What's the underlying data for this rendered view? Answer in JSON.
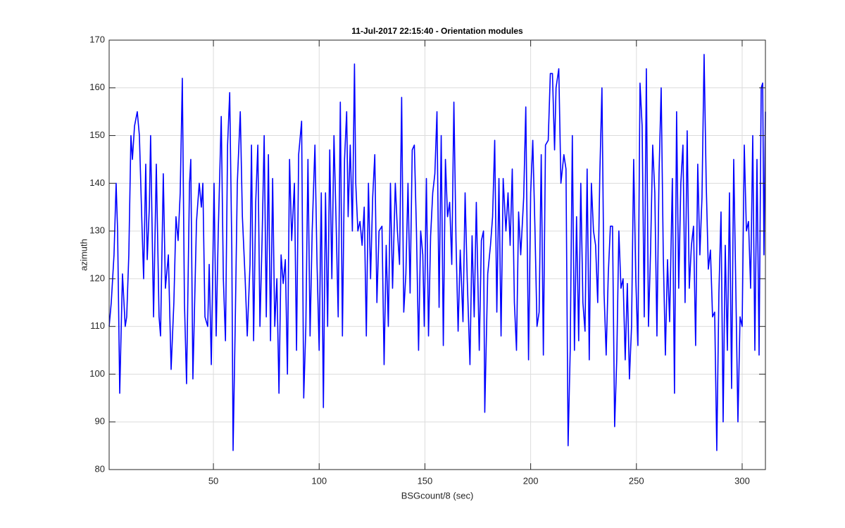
{
  "chart_data": {
    "type": "line",
    "title": "11-Jul-2017 22:15:40 - Orientation modules",
    "x_label": "BSGcount/8 (sec)",
    "y_label": "azimuth",
    "xlim": [
      0.7,
      311
    ],
    "ylim": [
      80,
      170
    ],
    "xticks": [
      50,
      100,
      150,
      200,
      250,
      300
    ],
    "yticks": [
      80,
      90,
      100,
      110,
      120,
      130,
      140,
      150,
      160,
      170
    ],
    "grid": true,
    "x": [
      0.7,
      1.7,
      3,
      4,
      4.7,
      5.7,
      7,
      8.3,
      9,
      10,
      11,
      11.7,
      12.7,
      14,
      15,
      16.3,
      17,
      18,
      18.7,
      19.7,
      20.3,
      21.7,
      23,
      24.3,
      25,
      26.3,
      27.3,
      28.7,
      30,
      31.3,
      32.3,
      33.3,
      34.3,
      35.3,
      36.3,
      37.3,
      38.7,
      39.3,
      40.3,
      42,
      43.3,
      44.3,
      45,
      46,
      47.3,
      48,
      49,
      50.3,
      51.3,
      52.3,
      53.7,
      54.7,
      55.7,
      56.7,
      57.7,
      58.7,
      59.3,
      60.3,
      61.3,
      62.7,
      63.7,
      65,
      66,
      67.3,
      68,
      69,
      70,
      71,
      72,
      73,
      74,
      75,
      76,
      77,
      78,
      79,
      80,
      81,
      82,
      83,
      84,
      85,
      86,
      87,
      88.3,
      89.3,
      90.3,
      91.7,
      92.7,
      93.7,
      94.7,
      95.7,
      96.7,
      98,
      99,
      100,
      101,
      102,
      103,
      104,
      105,
      106,
      107,
      108,
      109,
      110,
      111,
      112,
      113,
      113.7,
      114.7,
      115.7,
      116.7,
      117.3,
      118.3,
      119.3,
      120.3,
      121.3,
      122.3,
      123.3,
      124.3,
      125.3,
      126.3,
      127.3,
      128.3,
      129.7,
      130.7,
      131.7,
      132.7,
      133.7,
      134.7,
      136,
      137,
      138,
      139,
      140,
      141,
      142,
      143,
      144,
      145,
      146,
      147,
      148,
      149,
      149.7,
      150.7,
      151.7,
      152.7,
      153.7,
      154.7,
      155.7,
      156.7,
      157.7,
      158.7,
      159.7,
      160.7,
      161.7,
      162.7,
      163.7,
      164.7,
      165.7,
      166.7,
      168,
      169,
      170,
      171.3,
      172.3,
      173.3,
      174.3,
      175.7,
      176.7,
      177.7,
      178.3,
      179.7,
      181,
      182,
      183,
      184,
      185,
      186,
      187,
      188.3,
      189.3,
      190.3,
      191.3,
      192.3,
      193.3,
      194.3,
      195.3,
      196.7,
      197.7,
      198.3,
      199,
      200,
      201,
      202,
      203,
      204,
      205,
      206,
      207,
      208.3,
      209.3,
      210.3,
      211.3,
      212,
      213.3,
      214.3,
      215.7,
      216.7,
      217.7,
      218.7,
      219.7,
      220.7,
      221.7,
      222.7,
      223.7,
      224.7,
      225.7,
      226.7,
      227.7,
      228.7,
      229.7,
      230.7,
      231.7,
      232.7,
      233.7,
      234.7,
      235.7,
      236.7,
      237.7,
      238.7,
      239.7,
      240.7,
      241.7,
      242.7,
      243.7,
      244.7,
      245.7,
      246.7,
      247.7,
      248.7,
      249.7,
      250.7,
      251.7,
      252.7,
      253.7,
      254.7,
      255.7,
      256.7,
      257.7,
      258.7,
      259.7,
      260.7,
      261.7,
      262.7,
      263.7,
      264.7,
      265.7,
      267,
      268,
      269,
      270,
      271,
      272,
      273,
      274,
      275,
      276,
      277,
      278,
      279,
      280,
      281,
      282,
      283,
      284,
      285,
      286,
      287,
      288,
      289,
      290,
      291,
      292,
      293,
      294,
      295,
      296,
      297,
      298,
      299,
      300,
      301,
      302,
      303,
      304,
      305,
      306,
      307,
      308,
      309,
      309.7,
      310.3,
      311
    ],
    "series": [
      {
        "color": "#0000ff",
        "values": [
          110,
          115,
          125,
          140,
          130,
          96,
          121,
          110,
          112,
          125,
          150,
          145,
          152,
          155,
          150,
          130,
          120,
          144,
          124,
          135,
          150,
          112,
          144,
          112,
          108,
          142,
          118,
          125,
          101,
          115,
          133,
          128,
          138,
          162,
          115,
          98,
          140,
          145,
          99,
          132,
          140,
          135,
          140,
          112,
          110,
          123,
          102,
          140,
          108,
          130,
          154,
          120,
          107,
          148,
          159,
          126,
          84,
          110,
          140,
          155,
          133,
          120,
          108,
          123,
          148,
          107,
          136,
          148,
          110,
          128,
          150,
          112,
          146,
          107,
          141,
          110,
          120,
          96,
          125,
          119,
          124,
          100,
          145,
          128,
          140,
          105,
          146,
          153,
          95,
          110,
          145,
          108,
          130,
          148,
          123,
          105,
          138,
          93,
          138,
          110,
          147,
          120,
          150,
          132,
          112,
          157,
          108,
          145,
          155,
          133,
          148,
          130,
          165,
          140,
          130,
          132,
          127,
          135,
          108,
          140,
          120,
          137,
          146,
          115,
          130,
          131,
          102,
          127,
          110,
          140,
          118,
          140,
          130,
          123,
          158,
          113,
          121,
          140,
          117,
          147,
          148,
          130,
          105,
          130,
          125,
          110,
          141,
          108,
          129,
          138,
          142,
          155,
          114,
          150,
          106,
          145,
          133,
          136,
          123,
          157,
          128,
          109,
          126,
          111,
          138,
          120,
          102,
          129,
          112,
          136,
          105,
          128,
          130,
          92,
          121,
          127,
          133,
          149,
          113,
          141,
          108,
          141,
          130,
          138,
          127,
          143,
          115,
          105,
          134,
          125,
          137,
          156,
          131,
          103,
          138,
          149,
          131,
          110,
          113,
          146,
          104,
          148,
          149,
          163,
          163,
          147,
          160,
          164,
          140,
          146,
          143,
          85,
          105,
          150,
          105,
          133,
          107,
          140,
          115,
          109,
          143,
          103,
          140,
          130,
          127,
          115,
          142,
          160,
          117,
          104,
          121,
          131,
          131,
          89,
          103,
          130,
          118,
          120,
          103,
          119,
          99,
          110,
          145,
          120,
          106,
          161,
          152,
          112,
          164,
          110,
          126,
          148,
          138,
          108,
          142,
          160,
          125,
          104,
          124,
          111,
          141,
          96,
          155,
          118,
          140,
          148,
          115,
          151,
          118,
          127,
          131,
          106,
          144,
          125,
          137,
          167,
          140,
          122,
          126,
          112,
          113,
          84,
          117,
          134,
          90,
          127,
          105,
          138,
          97,
          145,
          118,
          90,
          112,
          110,
          148,
          130,
          132,
          118,
          150,
          105,
          145,
          104,
          160,
          161,
          125,
          155
        ]
      }
    ]
  }
}
